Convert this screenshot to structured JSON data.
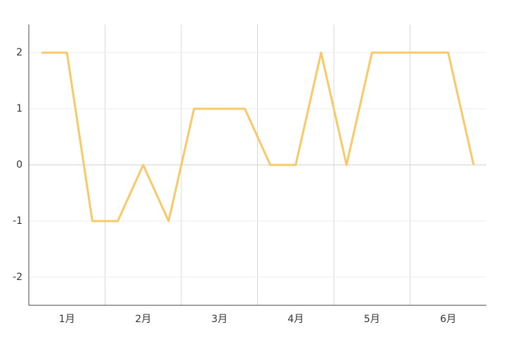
{
  "chart_data": {
    "type": "line",
    "categories": [
      null,
      "1月",
      null,
      null,
      "2月",
      null,
      null,
      "3月",
      null,
      null,
      "4月",
      null,
      null,
      "5月",
      null,
      null,
      "6月",
      null
    ],
    "series": [
      {
        "color": "#f7c967",
        "values": [
          2,
          2,
          -1,
          -1,
          0,
          -1,
          1,
          1,
          1,
          0,
          0,
          2,
          0,
          2,
          2,
          2,
          2,
          0
        ]
      }
    ],
    "ylim": [
      -2.5,
      2.5
    ],
    "yticks": [
      -2,
      -1,
      0,
      1,
      2
    ],
    "grid": true
  }
}
